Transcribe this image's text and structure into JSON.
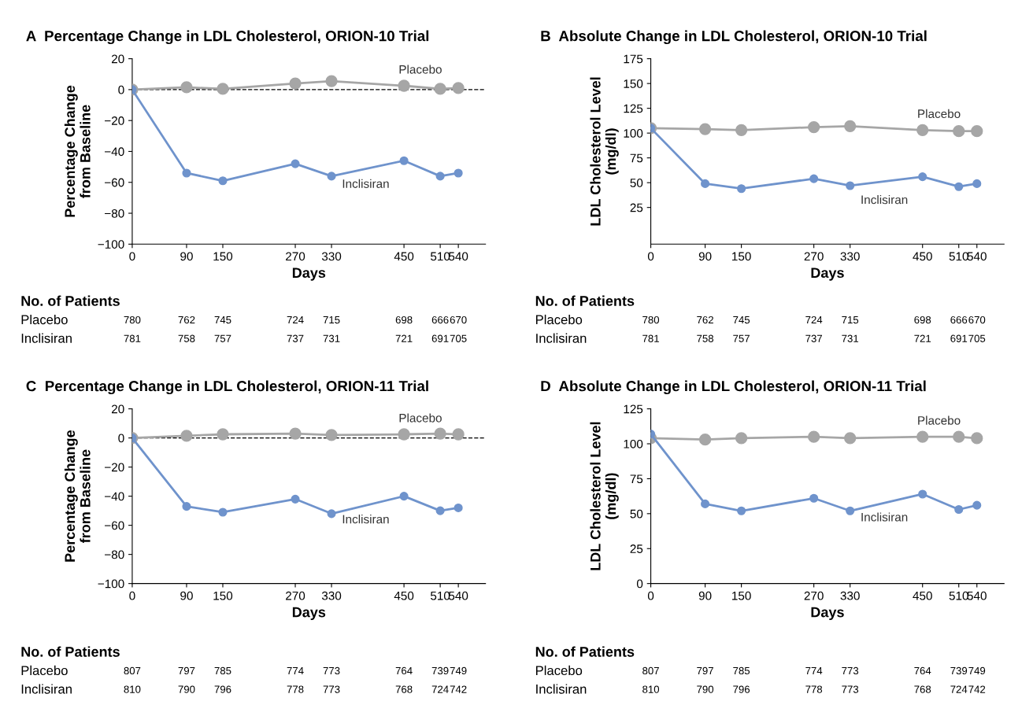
{
  "chart_data": [
    {
      "type": "line",
      "title": "A  Percentage Change in LDL Cholesterol, ORION-10 Trial",
      "xlabel": "Days",
      "ylabel": "Percentage Change\nfrom Baseline",
      "x": [
        0,
        90,
        150,
        270,
        330,
        450,
        510,
        540
      ],
      "xlim": [
        0,
        585
      ],
      "xticks": [
        0,
        90,
        150,
        270,
        330,
        450,
        510,
        540
      ],
      "ylim": [
        -100,
        20
      ],
      "yticks": [
        {
          "value": -100,
          "label": "−100"
        },
        {
          "value": -80,
          "label": "−80"
        },
        {
          "value": -60,
          "label": "−60"
        },
        {
          "value": -40,
          "label": "−40"
        },
        {
          "value": -20,
          "label": "−20"
        },
        0,
        20
      ],
      "marker": "circle",
      "grid": false,
      "legend": false,
      "ref_lines": [
        {
          "axis": "y",
          "value": 0,
          "color": "#000000",
          "line_style": "dashed"
        }
      ],
      "series": [
        {
          "name": "Placebo",
          "color": "#a6a6a6",
          "values": [
            0,
            1.5,
            0.5,
            4,
            5.5,
            2.5,
            0.5,
            1
          ]
        },
        {
          "name": "Inclisiran",
          "color": "#6f93cc",
          "values": [
            0,
            -54,
            -59,
            -48,
            -56,
            -46,
            -56,
            -54
          ]
        }
      ],
      "annotations": [
        "No. of Patients",
        "Placebo",
        "Inclisiran",
        "780",
        "762",
        "745",
        "724",
        "715",
        "698",
        "666",
        "670",
        "781",
        "758",
        "757",
        "737",
        "731",
        "721",
        "691",
        "705"
      ]
    },
    {
      "type": "line",
      "title": "B  Absolute Change in LDL Cholesterol, ORION-10 Trial",
      "xlabel": "Days",
      "ylabel": "LDL Cholesterol Level\n(mg/dl)",
      "x": [
        0,
        90,
        150,
        270,
        330,
        450,
        510,
        540
      ],
      "xlim": [
        0,
        585
      ],
      "xticks": [
        0,
        90,
        150,
        270,
        330,
        450,
        510,
        540
      ],
      "ylim": [
        -12,
        175
      ],
      "yticks": [
        25,
        50,
        75,
        100,
        125,
        150,
        175
      ],
      "marker": "circle",
      "grid": false,
      "legend": false,
      "series": [
        {
          "name": "Placebo",
          "color": "#a6a6a6",
          "values": [
            105,
            104,
            103,
            106,
            107,
            103,
            102,
            102
          ]
        },
        {
          "name": "Inclisiran",
          "color": "#6f93cc",
          "values": [
            105,
            49,
            44,
            54,
            47,
            56,
            46,
            49
          ]
        }
      ],
      "annotations": [
        "No. of Patients",
        "Placebo",
        "Inclisiran",
        "780",
        "762",
        "745",
        "724",
        "715",
        "698",
        "666",
        "670",
        "781",
        "758",
        "757",
        "737",
        "731",
        "721",
        "691",
        "705"
      ]
    },
    {
      "type": "line",
      "title": "C  Percentage Change in LDL Cholesterol, ORION-11 Trial",
      "xlabel": "Days",
      "ylabel": "Percentage Change\nfrom Baseline",
      "x": [
        0,
        90,
        150,
        270,
        330,
        450,
        510,
        540
      ],
      "xlim": [
        0,
        585
      ],
      "xticks": [
        0,
        90,
        150,
        270,
        330,
        450,
        510,
        540
      ],
      "ylim": [
        -100,
        20
      ],
      "yticks": [
        {
          "value": -100,
          "label": "−100"
        },
        {
          "value": -80,
          "label": "−80"
        },
        {
          "value": -60,
          "label": "−60"
        },
        {
          "value": -40,
          "label": "−40"
        },
        {
          "value": -20,
          "label": "−20"
        },
        0,
        20
      ],
      "marker": "circle",
      "grid": false,
      "legend": false,
      "ref_lines": [
        {
          "axis": "y",
          "value": 0,
          "color": "#000000",
          "line_style": "dashed"
        }
      ],
      "series": [
        {
          "name": "Placebo",
          "color": "#a6a6a6",
          "values": [
            0,
            1.5,
            2.5,
            3,
            2,
            2.5,
            3,
            2.5
          ]
        },
        {
          "name": "Inclisiran",
          "color": "#6f93cc",
          "values": [
            0,
            -47,
            -51,
            -42,
            -52,
            -40,
            -50,
            -48
          ]
        }
      ],
      "annotations": [
        "No. of Patients",
        "Placebo",
        "Inclisiran",
        "807",
        "797",
        "785",
        "774",
        "773",
        "764",
        "739",
        "749",
        "810",
        "790",
        "796",
        "778",
        "773",
        "768",
        "724",
        "742"
      ]
    },
    {
      "type": "line",
      "title": "D  Absolute Change in LDL Cholesterol, ORION-11 Trial",
      "xlabel": "Days",
      "ylabel": "LDL Cholesterol Level\n(mg/dl)",
      "x": [
        0,
        90,
        150,
        270,
        330,
        450,
        510,
        540
      ],
      "xlim": [
        0,
        585
      ],
      "xticks": [
        0,
        90,
        150,
        270,
        330,
        450,
        510,
        540
      ],
      "ylim": [
        0,
        125
      ],
      "yticks": [
        0,
        25,
        50,
        75,
        100,
        125
      ],
      "marker": "circle",
      "grid": false,
      "legend": false,
      "series": [
        {
          "name": "Placebo",
          "color": "#a6a6a6",
          "values": [
            104,
            103,
            104,
            105,
            104,
            105,
            105,
            104
          ]
        },
        {
          "name": "Inclisiran",
          "color": "#6f93cc",
          "values": [
            107,
            57,
            52,
            61,
            52,
            64,
            53,
            56
          ]
        }
      ],
      "annotations": [
        "No. of Patients",
        "Placebo",
        "Inclisiran",
        "807",
        "797",
        "785",
        "774",
        "773",
        "764",
        "739",
        "749",
        "810",
        "790",
        "796",
        "778",
        "773",
        "768",
        "724",
        "742"
      ]
    }
  ]
}
